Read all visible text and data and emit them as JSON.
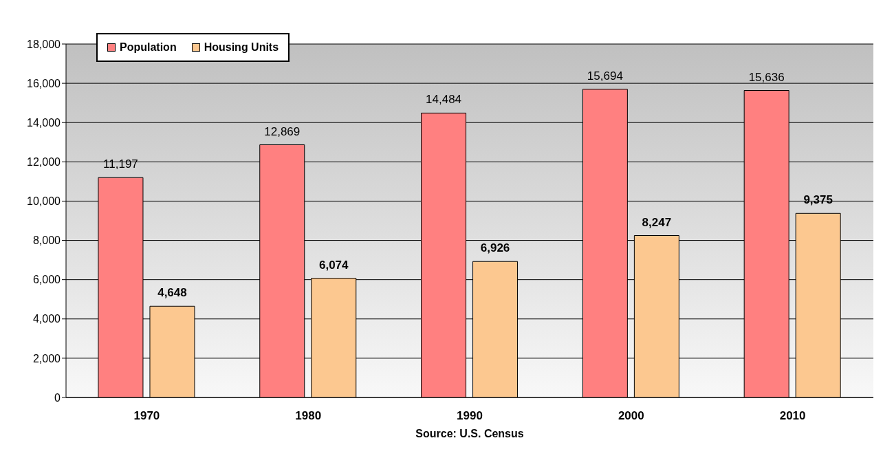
{
  "chart_data": {
    "type": "bar",
    "categories": [
      "1970",
      "1980",
      "1990",
      "2000",
      "2010"
    ],
    "series": [
      {
        "name": "Population",
        "color": "#ff8080",
        "values": [
          11197,
          12869,
          14484,
          15694,
          15636
        ],
        "value_labels": [
          "11,197",
          "12,869",
          "14,484",
          "15,694",
          "15,636"
        ]
      },
      {
        "name": "Housing Units",
        "color": "#fcc890",
        "values": [
          4648,
          6074,
          6926,
          8247,
          9375
        ],
        "value_labels": [
          "4,648",
          "6,074",
          "6,926",
          "8,247",
          "9,375"
        ]
      }
    ],
    "ylim": [
      0,
      18000
    ],
    "yticks": [
      0,
      {
        "value": 2000,
        "label": "2,000"
      },
      {
        "value": 4000,
        "label": "4,000"
      },
      {
        "value": 6000,
        "label": "6,000"
      },
      {
        "value": 8000,
        "label": "8,000"
      },
      {
        "value": 10000,
        "label": "10,000"
      },
      {
        "value": 12000,
        "label": "12,000"
      },
      {
        "value": 14000,
        "label": "14,000"
      },
      {
        "value": 16000,
        "label": "16,000"
      },
      {
        "value": 18000,
        "label": "18,000"
      }
    ],
    "grid": "y",
    "legend": "top left",
    "annotations": [
      "Source: U.S. Census"
    ]
  }
}
